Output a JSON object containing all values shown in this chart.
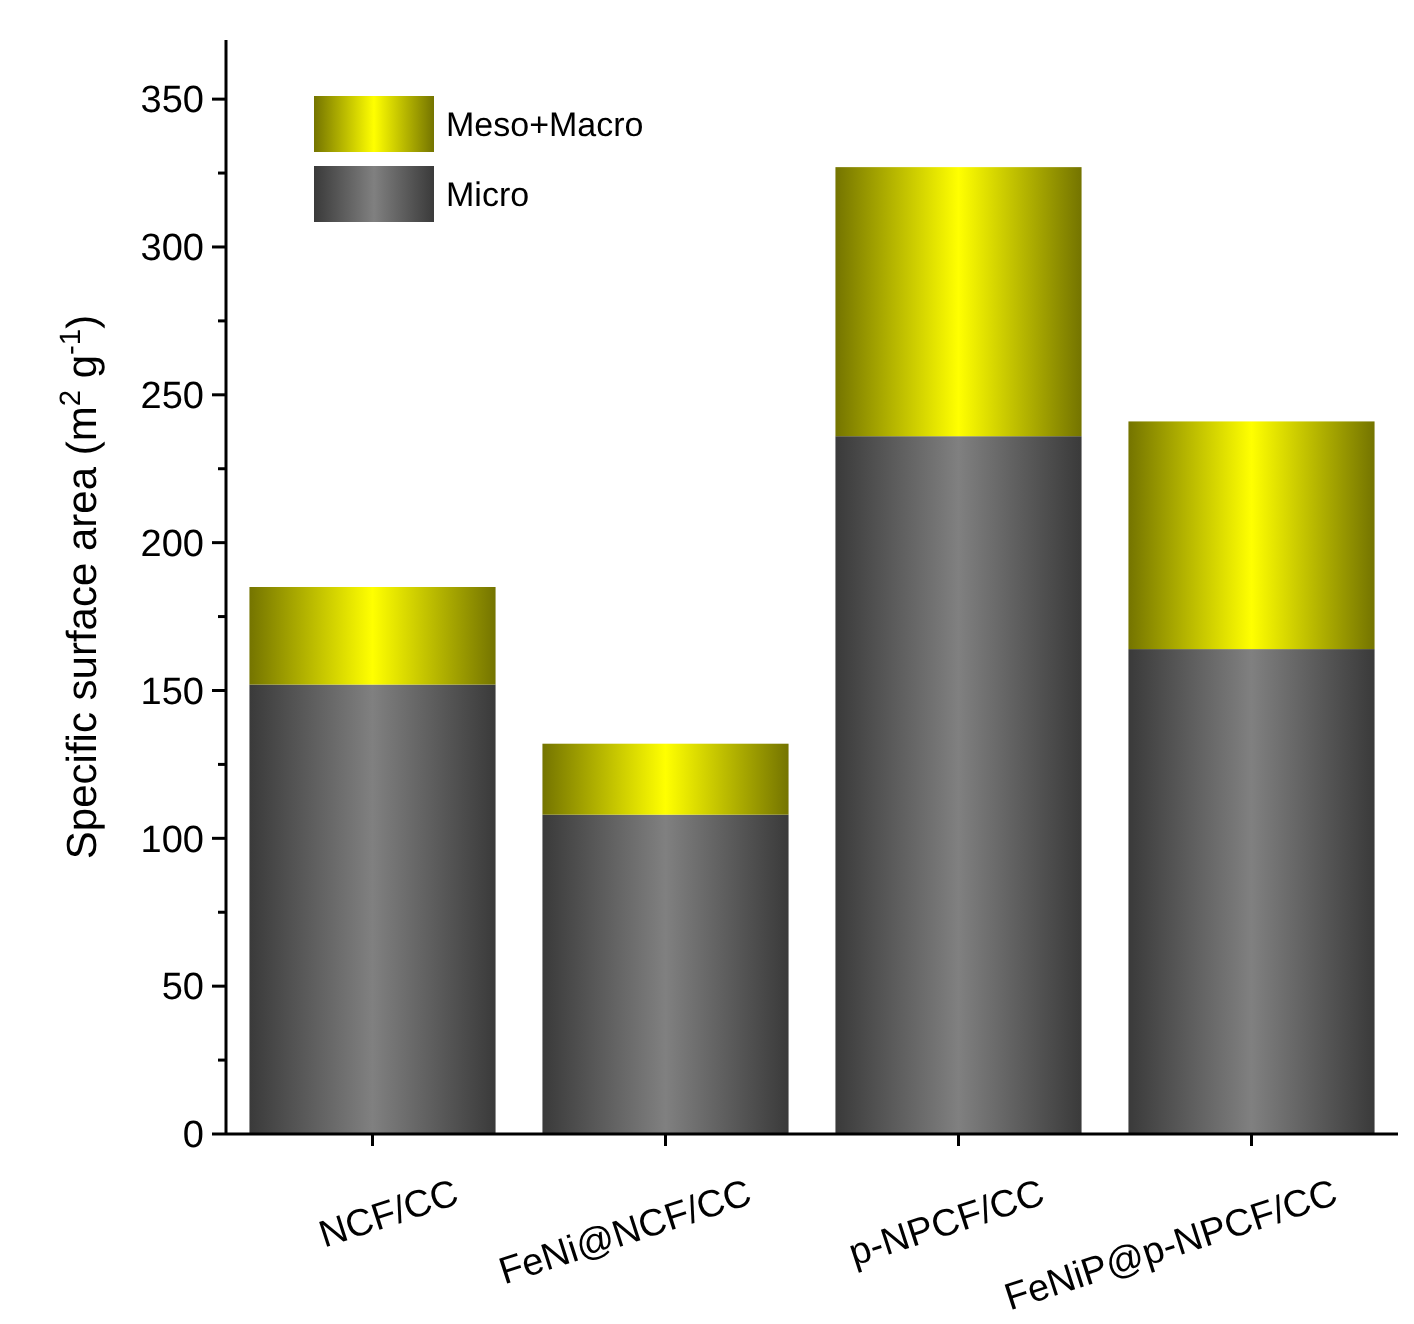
{
  "chart_data": {
    "type": "bar",
    "stacked": true,
    "ylabel": "Specific surface area (m$^{2}$ g$^{-1}$)",
    "categories": [
      "NCF/CC",
      "FeNi@NCF/CC",
      "p-NPCF/CC",
      "FeNiP@p-NPCF/CC"
    ],
    "series": [
      {
        "name": "Micro",
        "color": "#808080",
        "values": [
          152,
          108,
          236,
          164
        ]
      },
      {
        "name": "Meso+Macro",
        "color": "#ffff00",
        "values": [
          33,
          24,
          91,
          77
        ]
      }
    ],
    "ylim": [
      0,
      370
    ],
    "yticks": [
      0,
      {
        "value": 25,
        "label": null
      },
      50,
      {
        "value": 75,
        "label": null
      },
      100,
      {
        "value": 125,
        "label": null
      },
      150,
      {
        "value": 175,
        "label": null
      },
      200,
      {
        "value": 225,
        "label": null
      },
      250,
      {
        "value": 275,
        "label": null
      },
      300,
      {
        "value": 325,
        "label": null
      },
      350
    ],
    "legend": "top left",
    "grid": false
  }
}
